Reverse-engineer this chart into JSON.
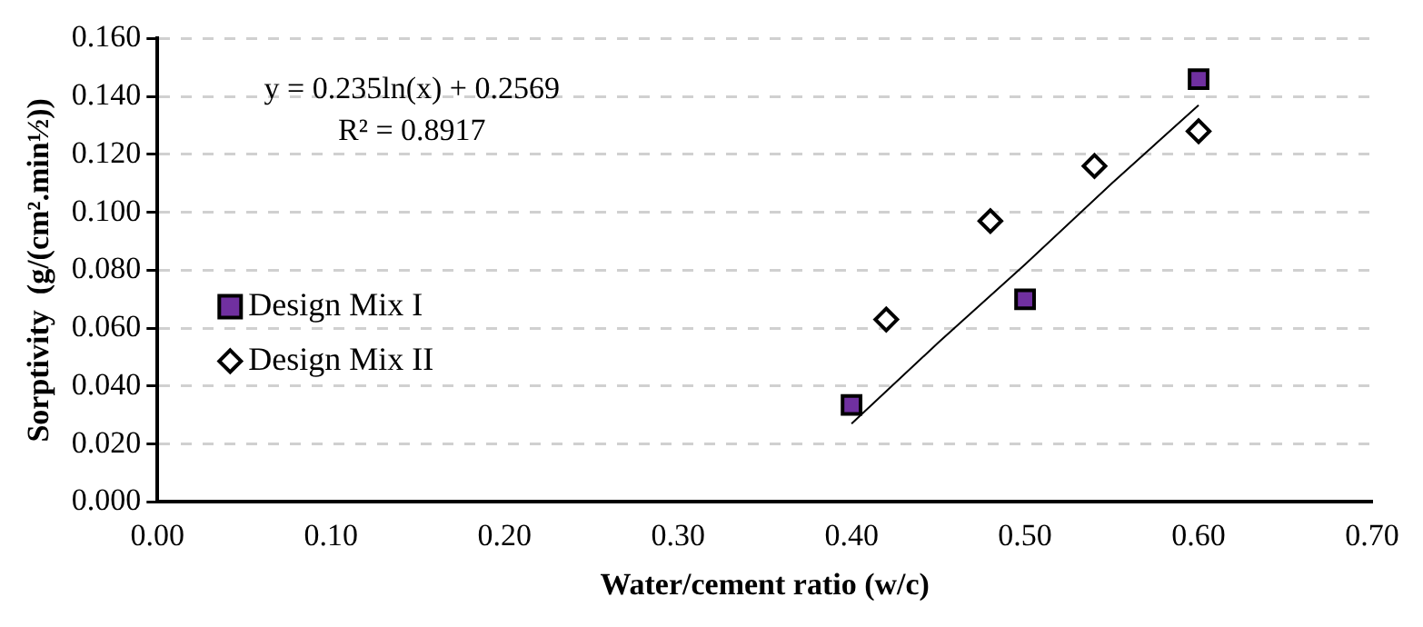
{
  "chart_data": {
    "type": "scatter",
    "xlabel": "Water/cement ratio (w/c)",
    "ylabel": "Sorptivity  (g/(cm².min½))",
    "xlim": [
      0,
      0.7
    ],
    "xticks": [
      {
        "value": 0,
        "label": "0.00"
      },
      {
        "value": 0.1,
        "label": "0.10"
      },
      {
        "value": 0.2,
        "label": "0.20"
      },
      {
        "value": 0.3,
        "label": "0.30"
      },
      {
        "value": 0.4,
        "label": "0.40"
      },
      {
        "value": 0.5,
        "label": "0.50"
      },
      {
        "value": 0.6,
        "label": "0.60"
      },
      {
        "value": 0.7,
        "label": "0.70"
      }
    ],
    "ylim": [
      0,
      0.16
    ],
    "yticks": [
      {
        "value": 0,
        "label": "0.000"
      },
      {
        "value": 0.02,
        "label": "0.020"
      },
      {
        "value": 0.04,
        "label": "0.040"
      },
      {
        "value": 0.06,
        "label": "0.060"
      },
      {
        "value": 0.08,
        "label": "0.080"
      },
      {
        "value": 0.1,
        "label": "0.100"
      },
      {
        "value": 0.12,
        "label": "0.120"
      },
      {
        "value": 0.14,
        "label": "0.140"
      },
      {
        "value": 0.16,
        "label": "0.160"
      }
    ],
    "grid": "y",
    "legend": "left",
    "annotations": [
      "y = 0.235ln(x) + 0.2569",
      "R² = 0.8917"
    ],
    "series": [
      {
        "name": "Design Mix I",
        "color": "#7030a0",
        "marker": "square",
        "x": [
          0.4,
          0.5,
          0.6
        ],
        "values": [
          0.0335,
          0.07,
          0.146
        ]
      },
      {
        "name": "Design Mix II",
        "color": "#ffffff",
        "marker": "diamond",
        "x": [
          0.42,
          0.48,
          0.54,
          0.6
        ],
        "values": [
          0.063,
          0.097,
          0.116,
          0.128
        ]
      },
      {
        "type": "line",
        "color": "#000000",
        "marker": "none",
        "x": [
          0.4,
          0.45,
          0.5,
          0.55,
          0.6
        ],
        "values": [
          0.027,
          0.055,
          0.082,
          0.11,
          0.137
        ]
      }
    ]
  }
}
